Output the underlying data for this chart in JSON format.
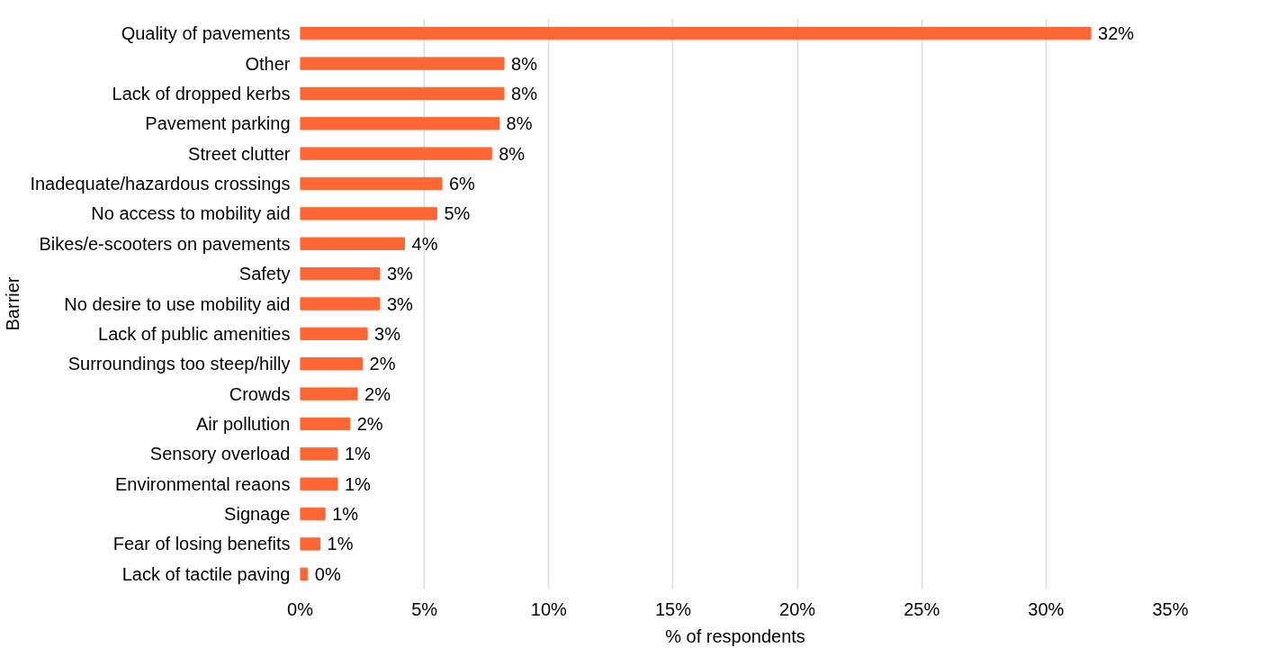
{
  "chart_data": {
    "type": "bar",
    "orientation": "horizontal",
    "xlabel": "% of respondents",
    "ylabel": "Barrier",
    "categories": [
      "Quality of pavements",
      "Other",
      "Lack of dropped kerbs",
      "Pavement parking",
      "Street clutter",
      "Inadequate/hazardous crossings",
      "No access to mobility aid",
      "Bikes/e-scooters on pavements",
      "Safety",
      "No desire to use mobility aid",
      "Lack of public amenities",
      "Surroundings too steep/hilly",
      "Crowds",
      "Air pollution",
      "Sensory overload",
      "Environmental reaons",
      "Signage",
      "Fear of losing benefits",
      "Lack of tactile paving"
    ],
    "values": [
      31.8,
      8.2,
      8.2,
      8.0,
      7.7,
      5.7,
      5.5,
      4.2,
      3.2,
      3.2,
      2.7,
      2.5,
      2.3,
      2.0,
      1.5,
      1.5,
      1.0,
      0.8,
      0.3
    ],
    "value_labels": [
      "32%",
      "8%",
      "8%",
      "8%",
      "8%",
      "6%",
      "5%",
      "4%",
      "3%",
      "3%",
      "3%",
      "2%",
      "2%",
      "2%",
      "1%",
      "1%",
      "1%",
      "1%",
      "0%"
    ],
    "color": "#ff6633",
    "xlim": [
      0,
      35
    ],
    "xticks": [
      {
        "value": 0,
        "label": "0%"
      },
      {
        "value": 5,
        "label": "5%"
      },
      {
        "value": 10,
        "label": "10%"
      },
      {
        "value": 15,
        "label": "15%"
      },
      {
        "value": 20,
        "label": "20%"
      },
      {
        "value": 25,
        "label": "25%"
      },
      {
        "value": 30,
        "label": "30%"
      },
      {
        "value": 35,
        "label": "35%"
      }
    ],
    "grid": "x"
  }
}
